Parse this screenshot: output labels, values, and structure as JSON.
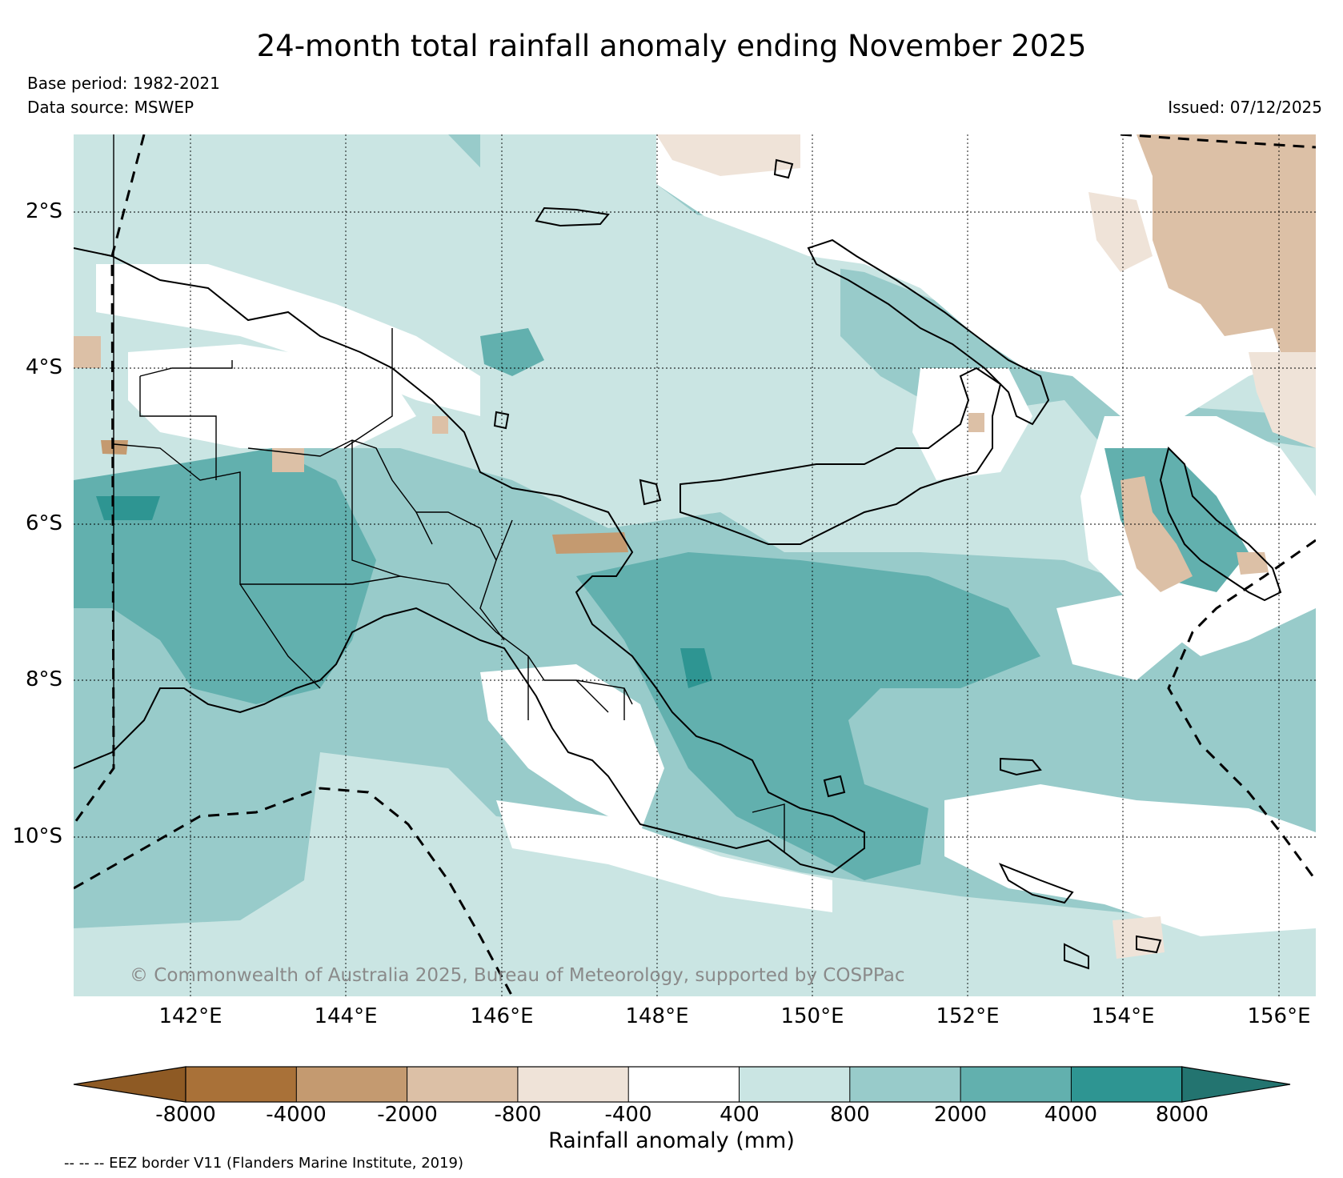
{
  "title": "24-month total rainfall anomaly ending November 2025",
  "base_period": "Base period: 1982-2021",
  "data_source": "Data source: MSWEP",
  "issued": "Issued: 07/12/2025",
  "copyright": "© Commonwealth of Australia 2025, Bureau of Meteorology, supported by COSPPac",
  "x_ticks": [
    "142°E",
    "144°E",
    "146°E",
    "148°E",
    "150°E",
    "152°E",
    "154°E",
    "156°E"
  ],
  "y_ticks": [
    "2°S",
    "4°S",
    "6°S",
    "8°S",
    "10°S"
  ],
  "colorbar": {
    "label": "Rainfall anomaly (mm)",
    "tick_labels": [
      "-8000",
      "-4000",
      "-2000",
      "-800",
      "-400",
      "400",
      "800",
      "2000",
      "4000",
      "8000"
    ],
    "colors": [
      "#8e5a24",
      "#a97138",
      "#c49a70",
      "#dcc0a6",
      "#efe3d8",
      "#ffffff",
      "#cae5e3",
      "#98cbca",
      "#62b0ae",
      "#2e9592",
      "#237470"
    ]
  },
  "eez_note": "-- -- -- EEZ border V11 (Flanders Marine Institute, 2019)"
}
